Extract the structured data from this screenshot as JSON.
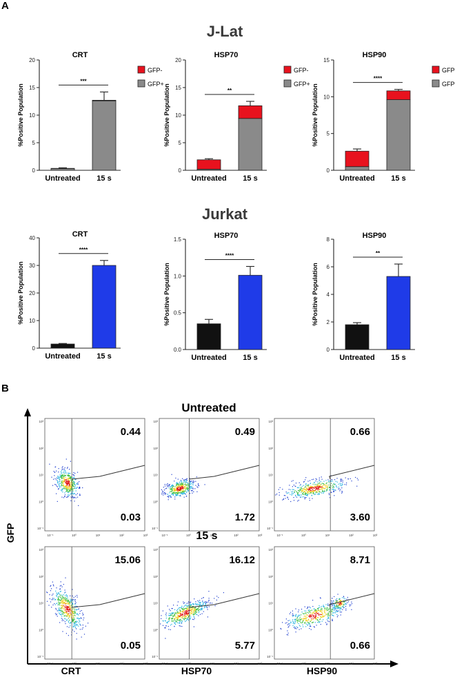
{
  "panel_a_label": "A",
  "panel_b_label": "B",
  "jlat_title": "J-Lat",
  "jurkat_title": "Jurkat",
  "colors": {
    "gfp_neg": "#e8121e",
    "gfp_pos": "#8a8a8a",
    "untreated": "#111111",
    "treated": "#1f3be8",
    "axis": "#222222"
  },
  "chart_data": [
    {
      "type": "bar",
      "group": "J-Lat",
      "title": "CRT",
      "categories": [
        "Untreated",
        "15 s"
      ],
      "series": [
        {
          "name": "GFP+",
          "values": [
            0.3,
            12.6
          ]
        },
        {
          "name": "GFP-",
          "values": [
            0.05,
            0.1
          ]
        }
      ],
      "error": [
        0.1,
        1.5
      ],
      "ylabel": "%Positive Population",
      "ylim": [
        0,
        20
      ],
      "yticks": [
        "0",
        "5",
        "10",
        "15",
        "20"
      ],
      "significance": "***",
      "legend": [
        "GFP-",
        "GFP+"
      ],
      "stacked": true
    },
    {
      "type": "bar",
      "group": "J-Lat",
      "title": "HSP70",
      "categories": [
        "Untreated",
        "15 s"
      ],
      "series": [
        {
          "name": "GFP+",
          "values": [
            0.2,
            9.4
          ]
        },
        {
          "name": "GFP-",
          "values": [
            1.7,
            2.3
          ]
        }
      ],
      "error": [
        0.2,
        0.8
      ],
      "ylabel": "%Positive Population",
      "ylim": [
        0,
        20
      ],
      "yticks": [
        "0",
        "5",
        "10",
        "15",
        "20"
      ],
      "significance": "**",
      "legend": [
        "GFP-",
        "GFP+"
      ],
      "stacked": true
    },
    {
      "type": "bar",
      "group": "J-Lat",
      "title": "HSP90",
      "categories": [
        "Untreated",
        "15 s"
      ],
      "series": [
        {
          "name": "GFP+",
          "values": [
            0.5,
            9.6
          ]
        },
        {
          "name": "GFP-",
          "values": [
            2.1,
            1.2
          ]
        }
      ],
      "error": [
        0.3,
        0.2
      ],
      "ylabel": "%Positive Population",
      "ylim": [
        0,
        15
      ],
      "yticks": [
        "0",
        "5",
        "10",
        "15"
      ],
      "significance": "****",
      "legend": [
        "GFP-",
        "GFP+"
      ],
      "stacked": true
    },
    {
      "type": "bar",
      "group": "Jurkat",
      "title": "CRT",
      "categories": [
        "Untreated",
        "15 s"
      ],
      "series": [
        {
          "name": "Positive",
          "values": [
            1.5,
            30.0
          ]
        }
      ],
      "error": [
        0.2,
        1.8
      ],
      "ylabel": "%Positive Population",
      "ylim": [
        0,
        40
      ],
      "yticks": [
        "0",
        "10",
        "20",
        "30",
        "40"
      ],
      "significance": "****",
      "stacked": false
    },
    {
      "type": "bar",
      "group": "Jurkat",
      "title": "HSP70",
      "categories": [
        "Untreated",
        "15 s"
      ],
      "series": [
        {
          "name": "Positive",
          "values": [
            0.35,
            1.01
          ]
        }
      ],
      "error": [
        0.06,
        0.12
      ],
      "ylabel": "%Positive Population",
      "ylim": [
        0,
        1.5
      ],
      "yticks": [
        "0.0",
        "0.5",
        "1.0",
        "1.5"
      ],
      "significance": "****",
      "stacked": false
    },
    {
      "type": "bar",
      "group": "Jurkat",
      "title": "HSP90",
      "categories": [
        "Untreated",
        "15 s"
      ],
      "series": [
        {
          "name": "Positive",
          "values": [
            1.8,
            5.3
          ]
        }
      ],
      "error": [
        0.15,
        0.9
      ],
      "ylabel": "%Positive Population",
      "ylim": [
        0,
        8
      ],
      "yticks": [
        "0",
        "2",
        "4",
        "6",
        "8"
      ],
      "significance": "**",
      "stacked": false
    }
  ],
  "flow": {
    "row_titles": [
      "Untreated",
      "15 s"
    ],
    "y_axis_label": "GFP",
    "x_labels": [
      "CRT",
      "HSP70",
      "HSP90"
    ],
    "panels": [
      {
        "row": 0,
        "col": 0,
        "top_value": "0.44",
        "bottom_value": "0.03"
      },
      {
        "row": 0,
        "col": 1,
        "top_value": "0.49",
        "bottom_value": "1.72"
      },
      {
        "row": 0,
        "col": 2,
        "top_value": "0.66",
        "bottom_value": "3.60"
      },
      {
        "row": 1,
        "col": 0,
        "top_value": "15.06",
        "bottom_value": "0.05"
      },
      {
        "row": 1,
        "col": 1,
        "top_value": "16.12",
        "bottom_value": "5.77"
      },
      {
        "row": 1,
        "col": 2,
        "top_value": "8.71",
        "bottom_value": "0.66"
      }
    ]
  }
}
